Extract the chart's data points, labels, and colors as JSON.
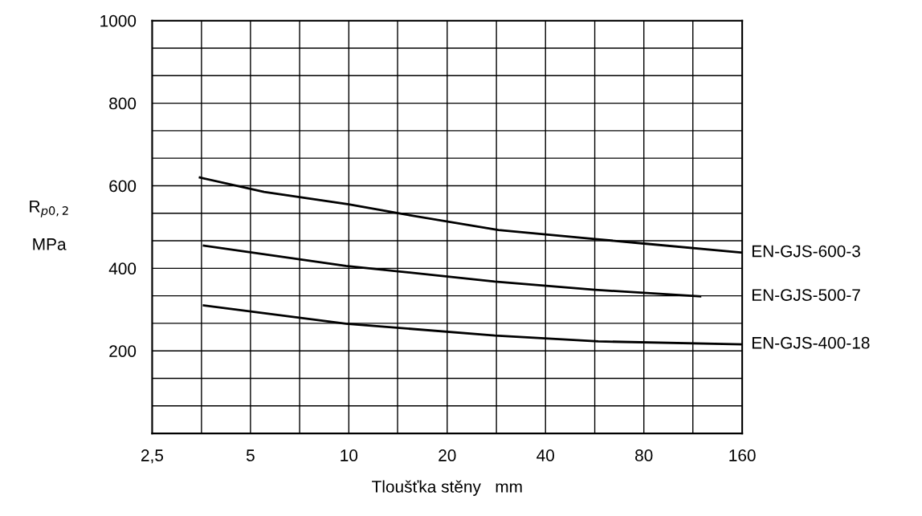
{
  "chart_data": {
    "type": "line",
    "xlabel": "Tloušťka stěny   mm",
    "ylabel": "R$_{p0,2}$\n\nMPa",
    "log": "x",
    "grid": true,
    "legend": false,
    "marker": "none",
    "line_style": "solid",
    "xlim": [
      2.5,
      160
    ],
    "xticks": [
      {
        "value": 2.5,
        "label": "2,5"
      },
      {
        "value": 3.54,
        "label": null
      },
      5,
      {
        "value": 7.07,
        "label": null
      },
      10,
      {
        "value": 14.1,
        "label": null
      },
      20,
      {
        "value": 28.3,
        "label": null
      },
      40,
      {
        "value": 56.6,
        "label": null
      },
      80,
      {
        "value": 113,
        "label": null
      },
      160
    ],
    "ylim": [
      0,
      1000
    ],
    "yticks": [
      {
        "value": 66.7,
        "label": null
      },
      {
        "value": 133.3,
        "label": null
      },
      200,
      {
        "value": 266.7,
        "label": null
      },
      {
        "value": 333.3,
        "label": null
      },
      400,
      {
        "value": 466.7,
        "label": null
      },
      {
        "value": 533.3,
        "label": null
      },
      600,
      {
        "value": 666.7,
        "label": null
      },
      {
        "value": 733.3,
        "label": null
      },
      800,
      {
        "value": 866.7,
        "label": null
      },
      {
        "value": 933.3,
        "label": null
      },
      1000
    ],
    "series": [
      {
        "name": "EN-GJS-600-3",
        "color": "#000000",
        "x": [
          3.5,
          5.5,
          10,
          14.5,
          28.7,
          56.7,
          80,
          160
        ],
        "values": [
          620,
          585,
          555,
          532,
          493,
          471,
          460,
          438
        ]
      },
      {
        "name": "EN-GJS-500-7",
        "color": "#000000",
        "x": [
          3.6,
          9.8,
          28,
          56.7,
          119
        ],
        "values": [
          455,
          406,
          368,
          348,
          332
        ]
      },
      {
        "name": "EN-GJS-400-18",
        "color": "#000000",
        "x": [
          3.6,
          9.8,
          28,
          58,
          160
        ],
        "values": [
          310,
          266,
          237,
          223,
          216
        ]
      }
    ]
  }
}
